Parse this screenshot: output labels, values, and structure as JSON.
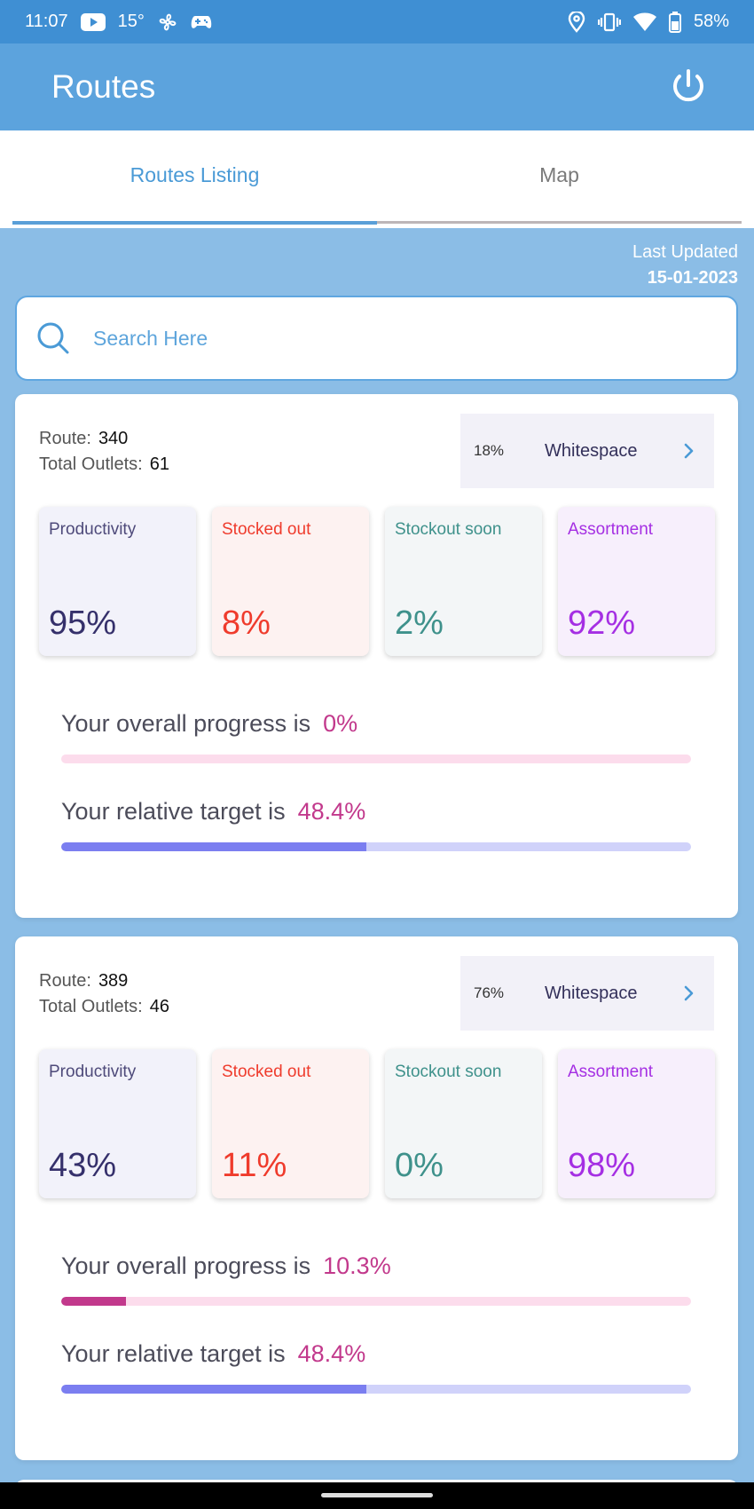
{
  "status_bar": {
    "time": "11:07",
    "temperature": "15°",
    "battery": "58%",
    "icons_left": [
      "youtube-icon",
      "fan-icon",
      "gamepad-icon"
    ],
    "icons_right": [
      "location-icon",
      "vibrate-icon",
      "wifi-icon",
      "battery-icon"
    ]
  },
  "app_bar": {
    "title": "Routes",
    "power_icon": "power-icon"
  },
  "tabs": [
    {
      "label": "Routes Listing",
      "active": true
    },
    {
      "label": "Map",
      "active": false
    }
  ],
  "last_updated": {
    "label": "Last Updated",
    "date": "15-01-2023"
  },
  "search": {
    "placeholder": "Search Here",
    "value": "",
    "icon": "search-icon"
  },
  "routes": [
    {
      "route_label": "Route:",
      "route": "340",
      "outlets_label": "Total Outlets:",
      "outlets": "61",
      "whitespace_pct": "18%",
      "whitespace_label": "Whitespace",
      "metrics": [
        {
          "label": "Productivity",
          "value": "95%"
        },
        {
          "label": "Stocked out",
          "value": "8%"
        },
        {
          "label": "Stockout soon",
          "value": "2%"
        },
        {
          "label": "Assortment",
          "value": "92%"
        }
      ],
      "progress_label": "Your overall progress is",
      "progress_value": "0%",
      "progress_fraction": 0.0,
      "target_label": "Your relative target is",
      "target_value": "48.4%",
      "target_fraction": 0.484
    },
    {
      "route_label": "Route:",
      "route": "389",
      "outlets_label": "Total Outlets:",
      "outlets": "46",
      "whitespace_pct": "76%",
      "whitespace_label": "Whitespace",
      "metrics": [
        {
          "label": "Productivity",
          "value": "43%"
        },
        {
          "label": "Stocked out",
          "value": "11%"
        },
        {
          "label": "Stockout soon",
          "value": "0%"
        },
        {
          "label": "Assortment",
          "value": "98%"
        }
      ],
      "progress_label": "Your overall progress is",
      "progress_value": "10.3%",
      "progress_fraction": 0.103,
      "target_label": "Your relative target is",
      "target_value": "48.4%",
      "target_fraction": 0.484
    }
  ],
  "colors": {
    "status_bar": "#3f8fd3",
    "app_bar": "#5ca3dd",
    "background": "#8bbde6",
    "accent_pink": "#c2398c",
    "accent_purple": "#7b7ef0"
  }
}
